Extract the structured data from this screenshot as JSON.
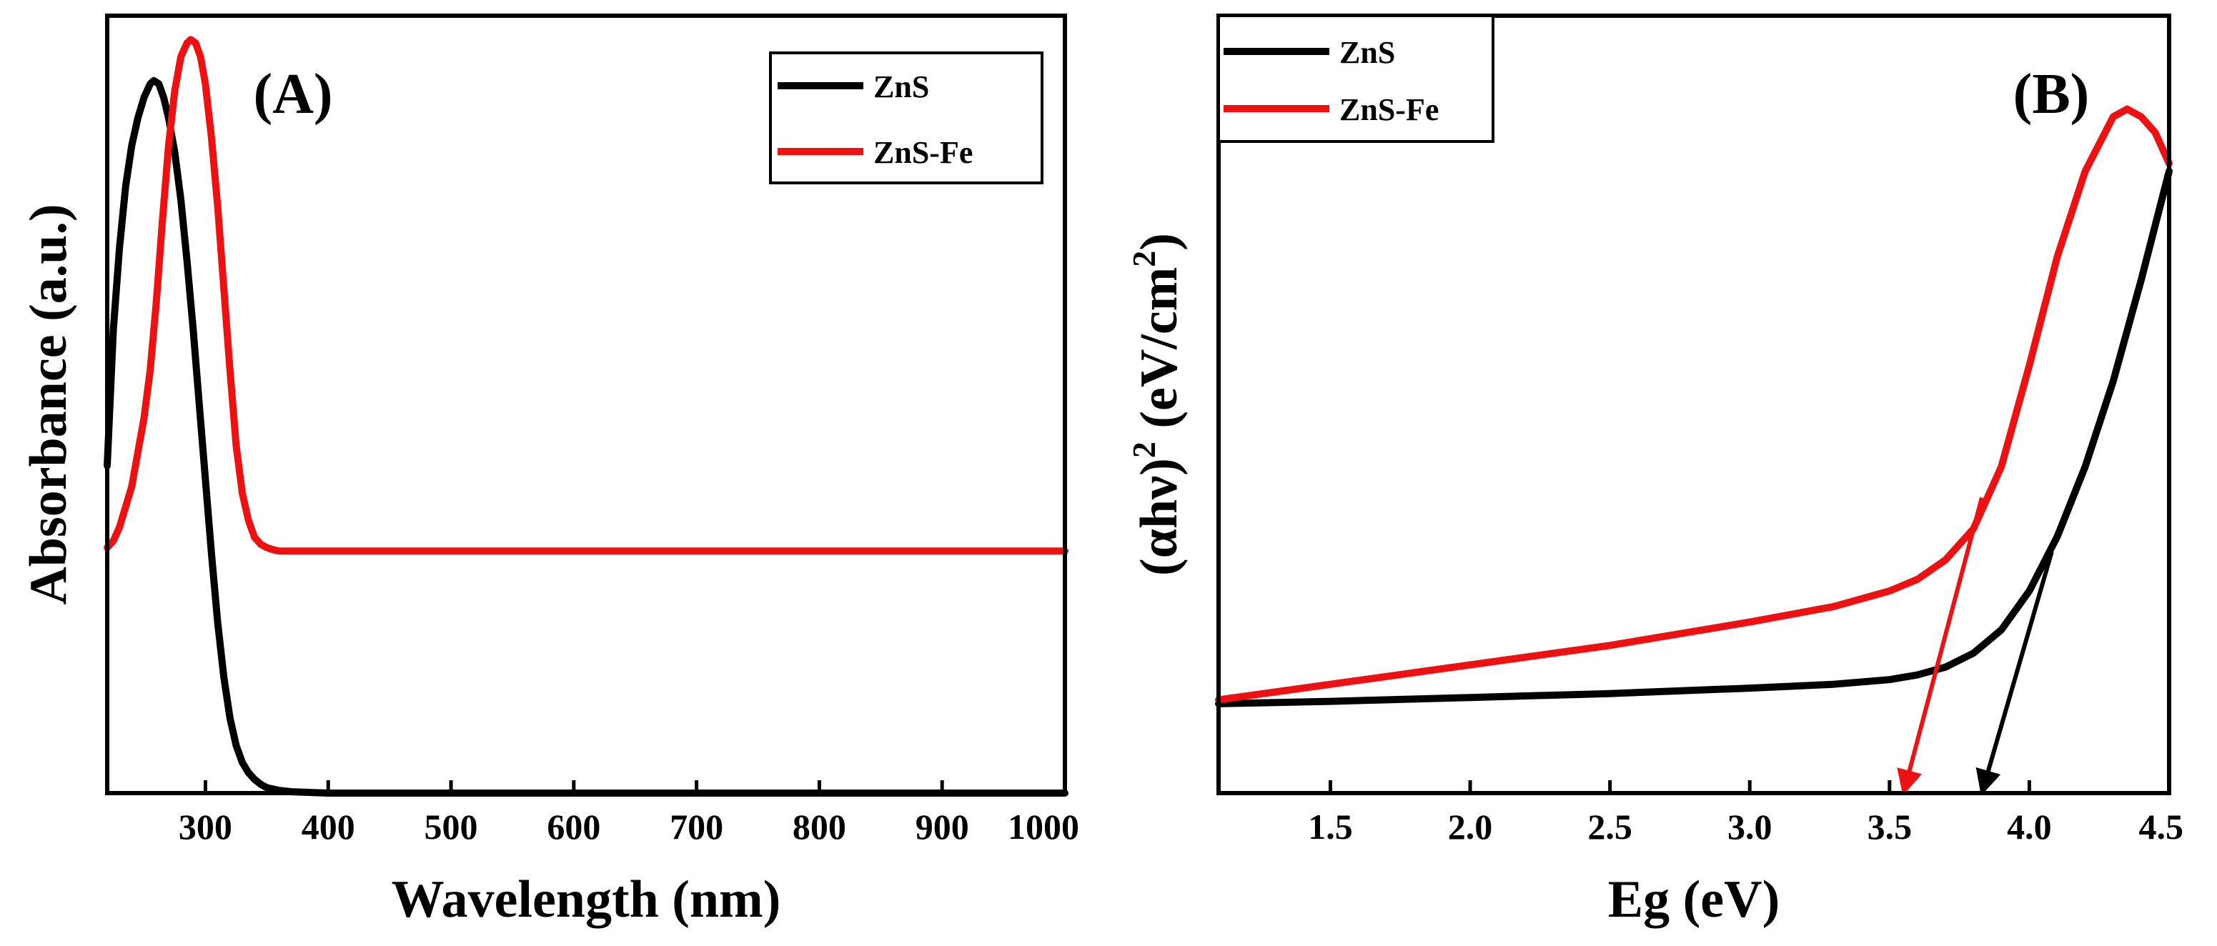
{
  "colors": {
    "zns": "#000000",
    "zns_fe": "#ee1111"
  },
  "chart_data": [
    {
      "type": "line",
      "panel_label": "(A)",
      "xlabel": "Wavelength (nm)",
      "ylabel": "Absorbance (a.u.)",
      "xlim": [
        220,
        1000
      ],
      "ylim": [
        0,
        1.14
      ],
      "x_ticks": [
        300,
        400,
        500,
        600,
        700,
        800,
        900,
        1000
      ],
      "x_tick_labels": [
        "300",
        "400",
        "500",
        "600",
        "700",
        "800",
        "900",
        "1000"
      ],
      "y_ticks_shown": false,
      "legend_position": "top-right",
      "series": [
        {
          "name": "ZnS",
          "color": "#000000",
          "x": [
            220,
            225,
            230,
            235,
            240,
            245,
            250,
            255,
            258,
            262,
            266,
            270,
            275,
            280,
            285,
            290,
            295,
            300,
            305,
            310,
            315,
            320,
            325,
            330,
            335,
            340,
            345,
            350,
            360,
            370,
            400,
            500,
            600,
            700,
            800,
            900,
            1000
          ],
          "y": [
            0.48,
            0.68,
            0.8,
            0.89,
            0.95,
            0.99,
            1.02,
            1.04,
            1.045,
            1.04,
            1.02,
            0.99,
            0.94,
            0.87,
            0.78,
            0.68,
            0.57,
            0.46,
            0.35,
            0.25,
            0.17,
            0.11,
            0.07,
            0.045,
            0.03,
            0.02,
            0.013,
            0.008,
            0.004,
            0.002,
            0.0,
            0.0,
            0.0,
            0.0,
            0.0,
            0.0,
            0.0
          ]
        },
        {
          "name": "ZnS-Fe",
          "color": "#ee1111",
          "x": [
            220,
            225,
            230,
            240,
            250,
            255,
            260,
            265,
            270,
            275,
            280,
            285,
            288,
            292,
            296,
            300,
            305,
            310,
            315,
            320,
            325,
            330,
            335,
            340,
            345,
            350,
            355,
            360,
            370,
            380,
            400,
            500,
            600,
            700,
            800,
            900,
            1000
          ],
          "y": [
            0.36,
            0.37,
            0.39,
            0.45,
            0.55,
            0.62,
            0.72,
            0.84,
            0.95,
            1.03,
            1.08,
            1.1,
            1.105,
            1.1,
            1.08,
            1.04,
            0.96,
            0.86,
            0.74,
            0.62,
            0.51,
            0.44,
            0.4,
            0.375,
            0.365,
            0.36,
            0.357,
            0.355,
            0.355,
            0.355,
            0.355,
            0.355,
            0.355,
            0.355,
            0.355,
            0.355,
            0.355
          ]
        }
      ]
    },
    {
      "type": "line",
      "panel_label": "(B)",
      "xlabel": "Eg (eV)",
      "ylabel_main": "(αhν)",
      "ylabel_sup": "2",
      "ylabel_unit": " (eV/cm",
      "ylabel_unit_sup": "2",
      "ylabel_close": ")",
      "xlim": [
        1.1,
        4.5
      ],
      "ylim": [
        0,
        1.0
      ],
      "x_ticks": [
        1.5,
        2.0,
        2.5,
        3.0,
        3.5,
        4.0,
        4.5
      ],
      "x_tick_labels": [
        "1.5",
        "2.0",
        "2.5",
        "3.0",
        "3.5",
        "4.0",
        "4.5"
      ],
      "y_ticks_shown": false,
      "legend_position": "top-left",
      "series": [
        {
          "name": "ZnS",
          "color": "#000000",
          "x": [
            1.1,
            1.5,
            2.0,
            2.5,
            3.0,
            3.3,
            3.5,
            3.6,
            3.7,
            3.8,
            3.9,
            4.0,
            4.1,
            4.2,
            4.3,
            4.4,
            4.5
          ],
          "y": [
            0.115,
            0.118,
            0.123,
            0.128,
            0.135,
            0.14,
            0.146,
            0.152,
            0.162,
            0.18,
            0.21,
            0.26,
            0.33,
            0.42,
            0.53,
            0.66,
            0.8
          ],
          "tangent_arrow": {
            "from": [
              4.08,
              0.31
            ],
            "to": [
              3.83,
              0.0
            ]
          }
        },
        {
          "name": "ZnS-Fe",
          "color": "#ee1111",
          "x": [
            1.1,
            1.5,
            2.0,
            2.5,
            3.0,
            3.3,
            3.5,
            3.6,
            3.7,
            3.8,
            3.9,
            4.0,
            4.1,
            4.2,
            4.3,
            4.35,
            4.4,
            4.45,
            4.5
          ],
          "y": [
            0.12,
            0.14,
            0.165,
            0.19,
            0.22,
            0.24,
            0.26,
            0.275,
            0.3,
            0.34,
            0.42,
            0.55,
            0.69,
            0.8,
            0.87,
            0.88,
            0.87,
            0.85,
            0.81
          ],
          "tangent_arrow": {
            "from": [
              3.83,
              0.38
            ],
            "to": [
              3.55,
              0.0
            ]
          }
        }
      ]
    }
  ]
}
